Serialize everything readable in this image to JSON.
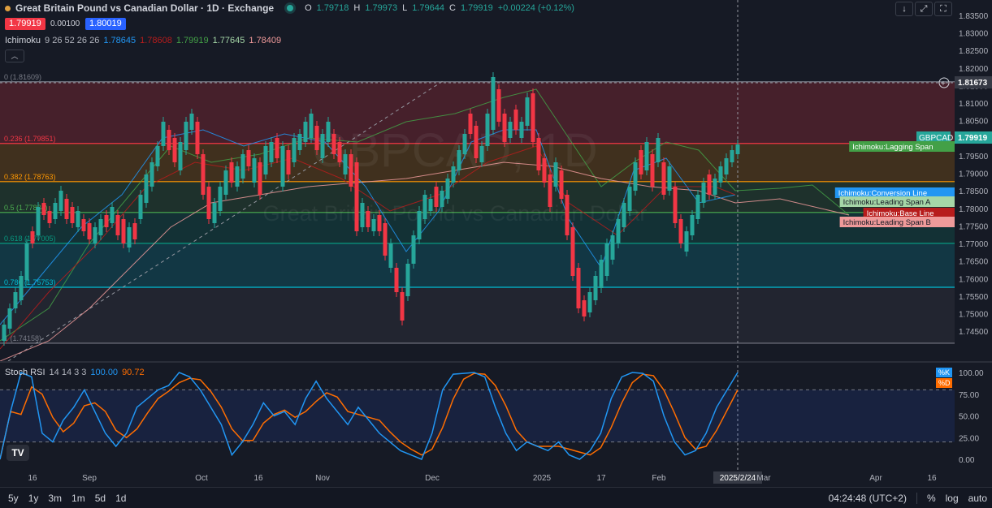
{
  "header": {
    "title": "Great Britain Pound vs Canadian Dollar · 1D · Exchange",
    "ohlc": {
      "o_label": "O",
      "o": "1.79718",
      "h_label": "H",
      "h": "1.79973",
      "l_label": "L",
      "l": "1.79644",
      "c_label": "C",
      "c": "1.79919",
      "change": "+0.00224 (+0.12%)"
    },
    "sell_price": "1.79919",
    "spread": "0.00100",
    "buy_price": "1.80019"
  },
  "ichimoku": {
    "name": "Ichimoku",
    "params": "9 26 52 26 26",
    "values": [
      "1.78645",
      "1.78608",
      "1.79919",
      "1.77645",
      "1.78409"
    ],
    "colors": [
      "#2196f3",
      "#b71c1c",
      "#43a047",
      "#a5d6a7",
      "#ef9a9a"
    ]
  },
  "stoch": {
    "name": "Stoch RSI",
    "params": "14 14 3 3",
    "k": "100.00",
    "d": "90.72"
  },
  "toolbar": {
    "down": "↓",
    "expand": "⤢",
    "fullscreen": "⛶"
  },
  "watermark": {
    "line1": "GBPCAD, 1D",
    "line2": "Great Britain Pound vs Canadian Dollar"
  },
  "price_axis": {
    "ticks": [
      "1.83500",
      "1.83000",
      "1.82500",
      "1.82000",
      "1.81500",
      "1.81000",
      "1.80500",
      "1.80000",
      "1.79500",
      "1.79000",
      "1.78500",
      "1.78000",
      "1.77500",
      "1.77000",
      "1.76500",
      "1.76000",
      "1.75500",
      "1.75000",
      "1.74500"
    ]
  },
  "axis_labels": {
    "crosshair": "1.81673",
    "symbol": "GBPCAD",
    "last_price": "1.79919"
  },
  "indicator_tags": [
    "Ichimoku:Lagging Span",
    "Ichimoku:Conversion Line",
    "Ichimoku:Leading Span A",
    "Ichimoku:Base Line",
    "Ichimoku:Leading Span B"
  ],
  "fib_levels": [
    {
      "label": "0 (1.81609)",
      "color": "#787b86"
    },
    {
      "label": "0.236 (1.79851)",
      "color": "#f23645"
    },
    {
      "label": "0.382 (1.78763)",
      "color": "#ff9800"
    },
    {
      "label": "0.5 (1.77884)",
      "color": "#4caf50"
    },
    {
      "label": "0.618 (1.77005)",
      "color": "#089981"
    },
    {
      "label": "0.786 (1.75753)",
      "color": "#00bcd4"
    },
    {
      "label": "1 (1.74158)",
      "color": "#787b86"
    }
  ],
  "rsi_axis": {
    "ticks": [
      "100.00",
      "75.00",
      "50.00",
      "25.00",
      "0.00"
    ],
    "k_tag": "%K",
    "d_tag": "%D"
  },
  "time_axis": {
    "labels": [
      "16",
      "Sep",
      "Oct",
      "16",
      "Nov",
      "Dec",
      "2025",
      "17",
      "Feb",
      "2025/2/24",
      "Mar",
      "Apr",
      "16"
    ]
  },
  "bottom": {
    "ranges": [
      "5y",
      "1y",
      "3m",
      "1m",
      "5d",
      "1d"
    ],
    "clock": "04:24:48 (UTC+2)",
    "percent": "%",
    "log": "log",
    "auto": "auto"
  },
  "tv_logo": "TV",
  "colors": {
    "up": "#26a69a",
    "down": "#f23645",
    "bg": "#161a25"
  }
}
